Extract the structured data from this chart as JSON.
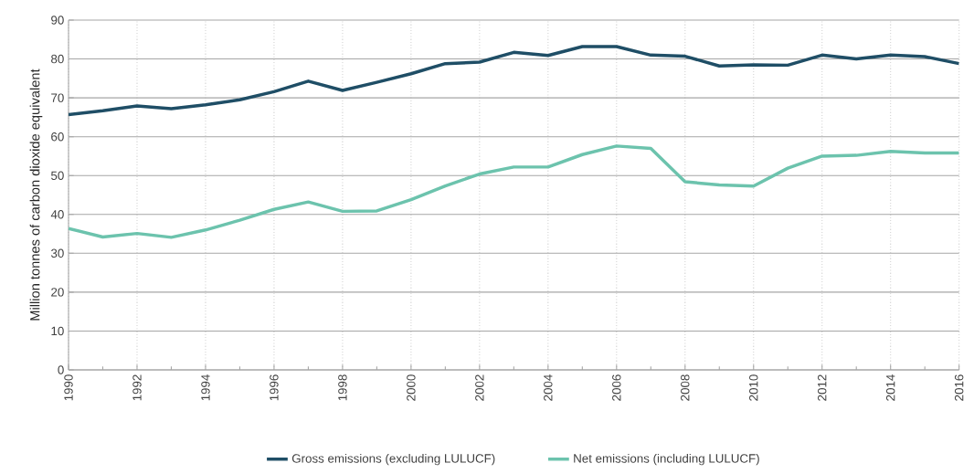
{
  "chart_data": {
    "type": "line",
    "ylabel": "Million tonnes of carbon dioxide equivalent",
    "x": [
      1990,
      1991,
      1992,
      1993,
      1994,
      1995,
      1996,
      1997,
      1998,
      1999,
      2000,
      2001,
      2002,
      2003,
      2004,
      2005,
      2006,
      2007,
      2008,
      2009,
      2010,
      2011,
      2012,
      2013,
      2014,
      2015,
      2016
    ],
    "series": [
      {
        "name": "Gross emissions (excluding LULUCF)",
        "color": "#1f4e66",
        "values": [
          65.7,
          66.7,
          67.9,
          67.2,
          68.2,
          69.5,
          71.6,
          74.3,
          71.9,
          74.0,
          76.2,
          78.8,
          79.2,
          81.7,
          80.9,
          83.2,
          83.2,
          81.0,
          80.7,
          78.2,
          78.5,
          78.4,
          81.0,
          80.0,
          81.0,
          80.6,
          78.8
        ]
      },
      {
        "name": "Net emissions (including LULUCF)",
        "color": "#6cc3ad",
        "values": [
          36.4,
          34.2,
          35.1,
          34.1,
          36.0,
          38.5,
          41.3,
          43.2,
          40.8,
          40.9,
          43.8,
          47.3,
          50.4,
          52.2,
          52.2,
          55.4,
          57.6,
          57.0,
          48.4,
          47.6,
          47.3,
          51.9,
          55.0,
          55.2,
          56.2,
          55.8,
          55.8
        ]
      }
    ],
    "xlim": [
      1990,
      2016
    ],
    "xticks": [
      1990,
      1992,
      1994,
      1996,
      1998,
      2000,
      2002,
      2004,
      2006,
      2008,
      2010,
      2012,
      2014,
      2016
    ],
    "ylim": [
      0,
      90
    ],
    "yticks": [
      0,
      10,
      20,
      30,
      40,
      50,
      60,
      70,
      80,
      90
    ],
    "grid": true,
    "legend": "bottom",
    "marker": "none",
    "line_style": "solid"
  }
}
